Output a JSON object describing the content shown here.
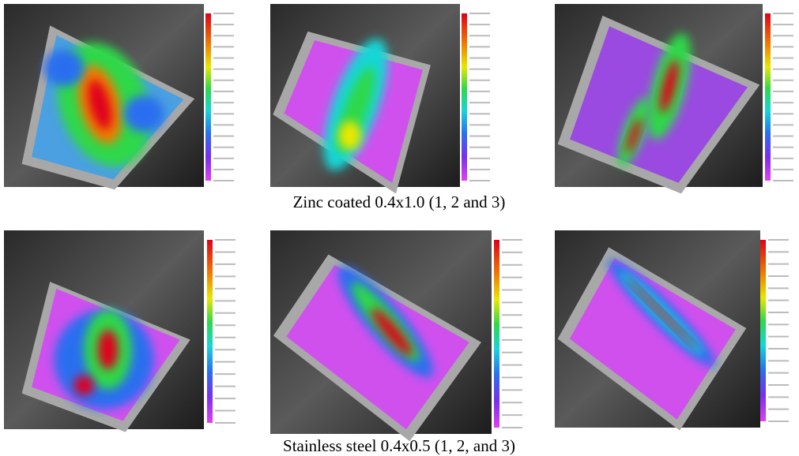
{
  "figure": {
    "captions": [
      "Zinc coated 0.4x1.0 (1, 2 and 3)",
      "Stainless steel 0.4x0.5 (1, 2, and 3)"
    ]
  }
}
